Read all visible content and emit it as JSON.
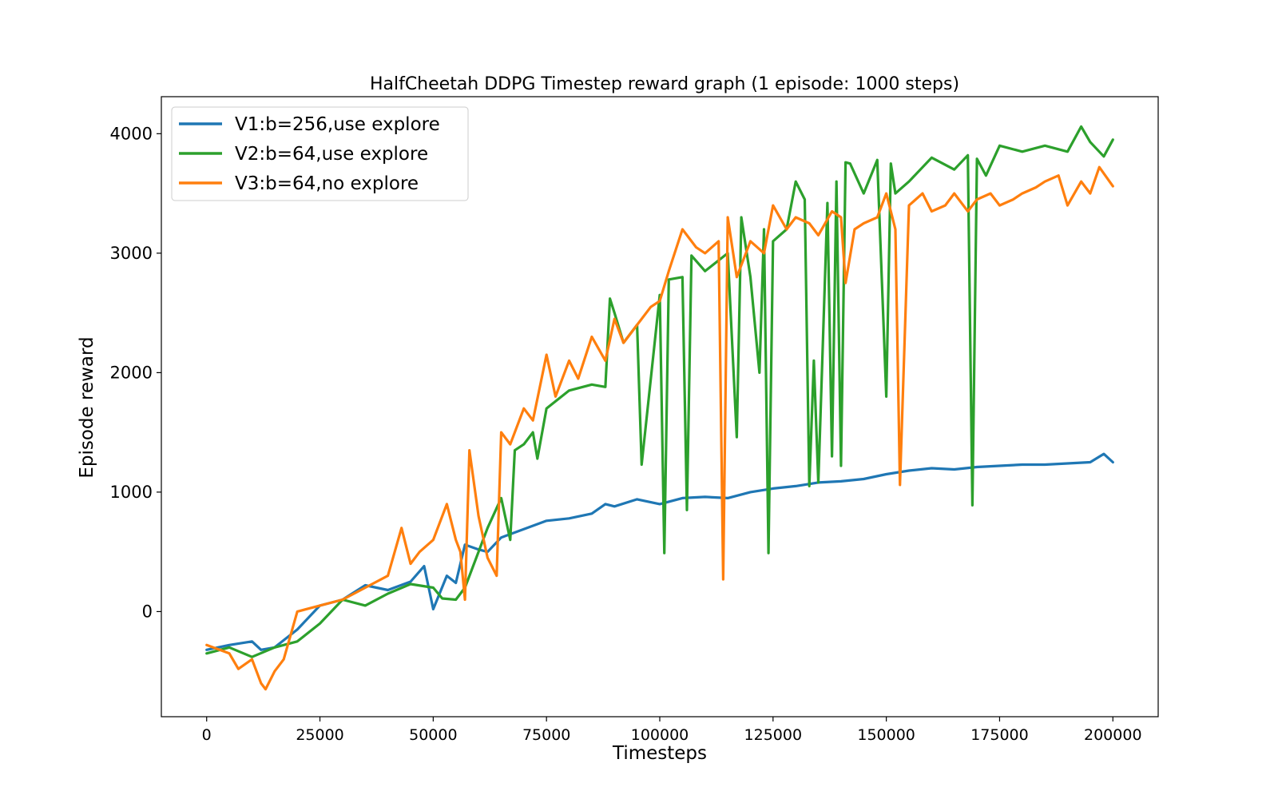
{
  "chart_data": {
    "type": "line",
    "title": "HalfCheetah DDPG Timestep reward graph (1 episode: 1000 steps)",
    "xlabel": "Timesteps",
    "ylabel": "Episode reward",
    "xlim": [
      -10000,
      210000
    ],
    "ylim": [
      -880,
      4310
    ],
    "xticks": [
      0,
      25000,
      50000,
      75000,
      100000,
      125000,
      150000,
      175000,
      200000
    ],
    "yticks": [
      0,
      1000,
      2000,
      3000,
      4000
    ],
    "grid": false,
    "legend_position": "upper-left",
    "series": [
      {
        "name": "V1:b=256,use explore",
        "color": "#1f77b4",
        "x": [
          0,
          5000,
          10000,
          12000,
          15000,
          20000,
          25000,
          30000,
          35000,
          40000,
          45000,
          48000,
          50000,
          53000,
          55000,
          57000,
          60000,
          62000,
          65000,
          70000,
          75000,
          80000,
          85000,
          88000,
          90000,
          95000,
          100000,
          105000,
          110000,
          115000,
          120000,
          125000,
          130000,
          135000,
          140000,
          145000,
          150000,
          155000,
          160000,
          165000,
          170000,
          175000,
          180000,
          185000,
          190000,
          195000,
          198000,
          200000
        ],
        "y": [
          -320,
          -280,
          -250,
          -320,
          -300,
          -150,
          50,
          100,
          220,
          180,
          250,
          380,
          20,
          300,
          240,
          560,
          520,
          500,
          620,
          690,
          760,
          780,
          820,
          900,
          880,
          940,
          900,
          950,
          960,
          950,
          1000,
          1030,
          1050,
          1080,
          1090,
          1110,
          1150,
          1180,
          1200,
          1190,
          1210,
          1220,
          1230,
          1230,
          1240,
          1250,
          1320,
          1250
        ]
      },
      {
        "name": "V2:b=64,use explore",
        "color": "#2ca02c",
        "x": [
          0,
          5000,
          10000,
          15000,
          20000,
          25000,
          30000,
          35000,
          40000,
          45000,
          50000,
          52000,
          55000,
          57000,
          60000,
          62000,
          65000,
          67000,
          68000,
          70000,
          72000,
          73000,
          75000,
          80000,
          85000,
          88000,
          89000,
          90000,
          92000,
          95000,
          96000,
          100000,
          101000,
          102000,
          105000,
          106000,
          107000,
          110000,
          115000,
          117000,
          118000,
          120000,
          122000,
          123000,
          124000,
          125000,
          128000,
          130000,
          132000,
          133000,
          134000,
          135000,
          137000,
          138000,
          139000,
          140000,
          141000,
          142000,
          145000,
          148000,
          150000,
          151000,
          152000,
          155000,
          160000,
          165000,
          168000,
          169000,
          170000,
          172000,
          175000,
          180000,
          185000,
          190000,
          193000,
          195000,
          198000,
          200000
        ],
        "y": [
          -350,
          -300,
          -380,
          -300,
          -250,
          -100,
          100,
          50,
          150,
          230,
          200,
          110,
          100,
          200,
          500,
          700,
          950,
          600,
          1350,
          1400,
          1500,
          1280,
          1700,
          1850,
          1900,
          1880,
          2620,
          2500,
          2250,
          2400,
          1230,
          2650,
          490,
          2780,
          2800,
          850,
          2980,
          2850,
          3000,
          1460,
          3300,
          2800,
          2000,
          3200,
          490,
          3100,
          3200,
          3600,
          3450,
          1050,
          2100,
          1080,
          3420,
          1300,
          3600,
          1220,
          3760,
          3750,
          3500,
          3780,
          1800,
          3750,
          3500,
          3600,
          3800,
          3700,
          3820,
          890,
          3790,
          3650,
          3900,
          3850,
          3900,
          3850,
          4060,
          3930,
          3810,
          3950
        ]
      },
      {
        "name": "V3:b=64,no explore",
        "color": "#ff7f0e",
        "x": [
          0,
          5000,
          7000,
          10000,
          12000,
          13000,
          15000,
          17000,
          20000,
          25000,
          30000,
          35000,
          40000,
          43000,
          45000,
          47000,
          50000,
          53000,
          55000,
          56000,
          57000,
          58000,
          60000,
          62000,
          64000,
          65000,
          67000,
          70000,
          72000,
          75000,
          77000,
          80000,
          82000,
          85000,
          88000,
          90000,
          92000,
          95000,
          98000,
          100000,
          102000,
          105000,
          108000,
          110000,
          113000,
          114000,
          115000,
          117000,
          120000,
          123000,
          125000,
          128000,
          130000,
          133000,
          135000,
          138000,
          140000,
          141000,
          143000,
          145000,
          148000,
          150000,
          152000,
          153000,
          155000,
          158000,
          160000,
          163000,
          165000,
          168000,
          170000,
          173000,
          175000,
          178000,
          180000,
          183000,
          185000,
          188000,
          190000,
          193000,
          195000,
          197000,
          200000
        ],
        "y": [
          -280,
          -350,
          -480,
          -400,
          -600,
          -650,
          -500,
          -400,
          0,
          50,
          100,
          200,
          300,
          700,
          400,
          500,
          600,
          900,
          600,
          500,
          100,
          1350,
          800,
          450,
          300,
          1500,
          1400,
          1700,
          1600,
          2150,
          1800,
          2100,
          1950,
          2300,
          2100,
          2450,
          2250,
          2400,
          2550,
          2600,
          2850,
          3200,
          3050,
          3000,
          3100,
          270,
          3300,
          2800,
          3100,
          3000,
          3400,
          3200,
          3300,
          3250,
          3150,
          3350,
          3300,
          2750,
          3200,
          3250,
          3300,
          3500,
          3200,
          1060,
          3400,
          3500,
          3350,
          3400,
          3500,
          3350,
          3450,
          3500,
          3400,
          3450,
          3500,
          3550,
          3600,
          3650,
          3400,
          3600,
          3500,
          3720,
          3560
        ]
      }
    ]
  }
}
